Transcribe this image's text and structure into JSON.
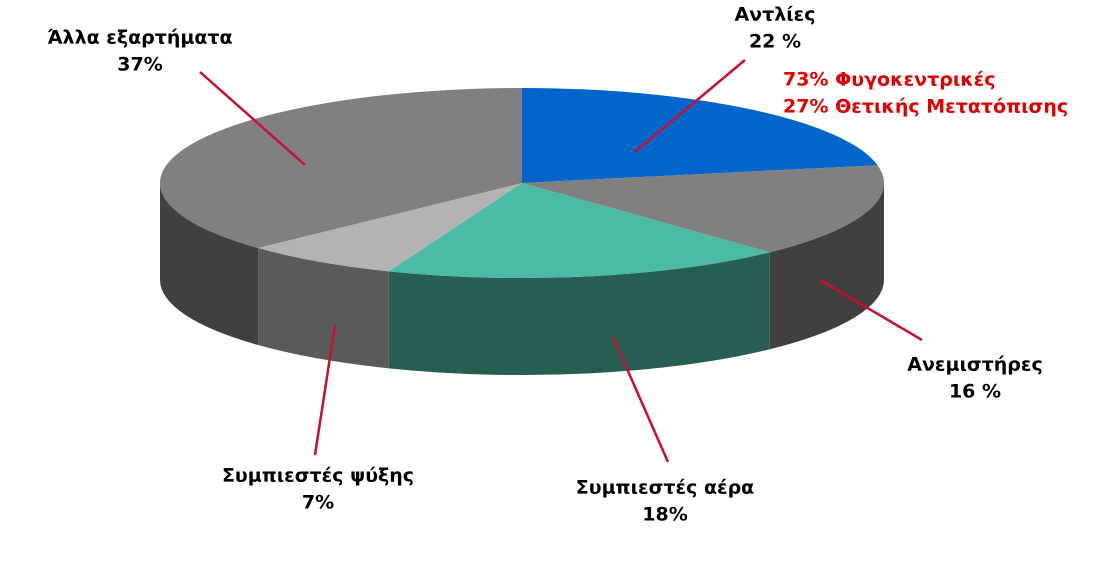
{
  "chart_data": {
    "type": "pie",
    "categories": [
      "Αντλίες",
      "Ανεμιστήρες",
      "Συμπιεστές αέρα",
      "Συμπιεστές ψύξης",
      "Άλλα εξαρτήματα"
    ],
    "values": [
      22,
      16,
      18,
      7,
      37
    ],
    "value_labels": [
      "22 %",
      "16 %",
      "18%",
      "7%",
      "37%"
    ],
    "colors": [
      "#0066cc",
      "#808080",
      "#4cbba6",
      "#b3b3b3",
      "#808080"
    ],
    "annotations": [
      "73% Φυγοκεντρικές",
      "27% Θετικής Μετατόπισης"
    ]
  }
}
